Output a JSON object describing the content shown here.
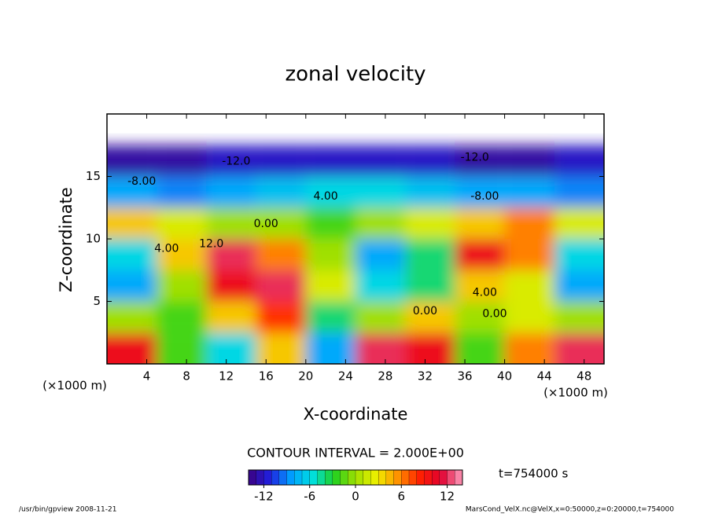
{
  "chart_data": {
    "type": "contour",
    "title": "zonal velocity",
    "xlabel": "X-coordinate",
    "ylabel": "Z-coordinate",
    "xunit": "(×1000 m)",
    "yunit": "(×1000 m)",
    "note": "CONTOUR INTERVAL = 2.000E+00",
    "time_label": "t=754000 s",
    "footer_left": "/usr/bin/gpview  2008-11-21",
    "footer_right": "MarsCond_VelX.nc@VelX,x=0:50000,z=0:20000,t=754000",
    "xlim": [
      0,
      50
    ],
    "ylim": [
      0,
      20
    ],
    "xticks": [
      4,
      8,
      12,
      16,
      20,
      24,
      28,
      32,
      36,
      40,
      44,
      48
    ],
    "yticks": [
      5,
      10,
      15
    ],
    "x": [
      2.5,
      7.5,
      12.5,
      17.5,
      22.5,
      27.5,
      32.5,
      37.5,
      42.5,
      47.5
    ],
    "y": [
      1.25,
      3.75,
      6.25,
      8.75,
      11.25,
      13.75,
      16.25,
      18.75
    ],
    "z": [
      [
        10,
        -2,
        -6,
        4,
        -8,
        12,
        10,
        -2,
        6,
        12
      ],
      [
        0,
        -2,
        4,
        8,
        -4,
        0,
        4,
        0,
        2,
        0
      ],
      [
        -8,
        0,
        10,
        12,
        2,
        -6,
        -4,
        4,
        2,
        -8
      ],
      [
        -6,
        4,
        12,
        6,
        0,
        -8,
        -4,
        10,
        6,
        -6
      ],
      [
        4,
        2,
        0,
        0,
        -2,
        0,
        2,
        4,
        6,
        2
      ],
      [
        -8,
        -9,
        -8,
        -7,
        -6,
        -6,
        -7,
        -8,
        -8,
        -9
      ],
      [
        -13,
        -13,
        -12,
        -12,
        -12,
        -12,
        -12,
        -13,
        -13,
        -12
      ],
      [
        null,
        null,
        null,
        null,
        null,
        null,
        null,
        null,
        null,
        null
      ]
    ],
    "clim": [
      -14,
      14
    ],
    "cticks": [
      -12,
      -6,
      0,
      6,
      12
    ],
    "colormap": [
      "#3c0080",
      "#2020e0",
      "#00a0ff",
      "#00e0e0",
      "#20d020",
      "#a0e000",
      "#f0f000",
      "#ff9000",
      "#ff2000",
      "#e00030",
      "#ffa0c0"
    ],
    "contour_labels": [
      {
        "text": "-12.0",
        "x": 13,
        "z": 16.2
      },
      {
        "text": "-12.0",
        "x": 37,
        "z": 16.5
      },
      {
        "text": "-8.00",
        "x": 3.5,
        "z": 14.6
      },
      {
        "text": "-8.00",
        "x": 38,
        "z": 13.4
      },
      {
        "text": "4.00",
        "x": 22,
        "z": 13.4
      },
      {
        "text": "0.00",
        "x": 16,
        "z": 11.2
      },
      {
        "text": "4.00",
        "x": 6,
        "z": 9.2
      },
      {
        "text": "12.0",
        "x": 10.5,
        "z": 9.6
      },
      {
        "text": "4.00",
        "x": 38,
        "z": 5.7
      },
      {
        "text": "0.00",
        "x": 32,
        "z": 4.2
      },
      {
        "text": "0.00",
        "x": 39,
        "z": 4.0
      }
    ]
  }
}
